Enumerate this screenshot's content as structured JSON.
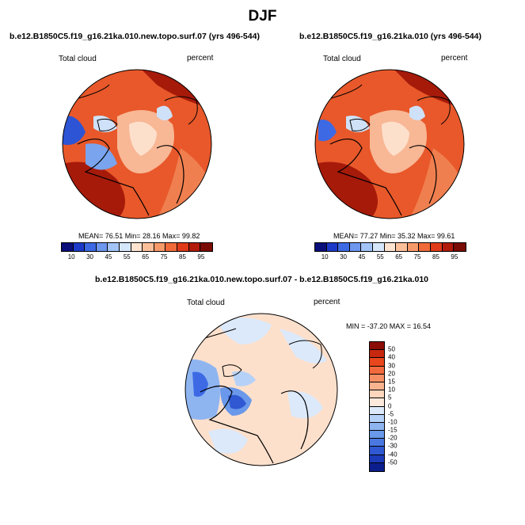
{
  "title": "DJF",
  "panels": [
    {
      "run_title": "b.e12.B1850C5.f19_g16.21ka.010.new.topo.surf.07 (yrs 496-544)",
      "left_label": "Total cloud",
      "right_label": "percent",
      "stats": "MEAN=  76.51  Min=  28.16  Max=  99.82"
    },
    {
      "run_title": "b.e12.B1850C5.f19_g16.21ka.010 (yrs 496-544)",
      "left_label": "Total cloud",
      "right_label": "percent",
      "stats": "MEAN=  77.27  Min=  35.32  Max=  99.61"
    }
  ],
  "colorbar_top": {
    "colors": [
      "#0a0f7a",
      "#1c3ac8",
      "#3d6ae4",
      "#6e97ee",
      "#a4c3f6",
      "#d7e7fb",
      "#fde3d0",
      "#fbbf9a",
      "#f79a6a",
      "#f06a3a",
      "#e03a18",
      "#b21a0a",
      "#7a0b05"
    ],
    "labels": [
      "10",
      "30",
      "45",
      "55",
      "65",
      "75",
      "85",
      "95"
    ]
  },
  "diff_panel": {
    "run_title": "b.e12.B1850C5.f19_g16.21ka.010.new.topo.surf.07 - b.e12.B1850C5.f19_g16.21ka.010",
    "left_label": "Total cloud",
    "right_label": "percent",
    "stats": "MIN =  -37.20  MAX =  16.54"
  },
  "colorbar_diff": {
    "colors": [
      "#8a0c05",
      "#c7280f",
      "#e8461c",
      "#f36a3e",
      "#f78f65",
      "#fab38f",
      "#fcd6bd",
      "#fde9dc",
      "#dbe9fb",
      "#b6d1f7",
      "#8fb5f1",
      "#6a98ea",
      "#4a78e0",
      "#2f58d2",
      "#1b3bb8",
      "#0c1e8c"
    ],
    "labels": [
      "50",
      "40",
      "30",
      "20",
      "15",
      "10",
      "5",
      "0",
      "-5",
      "-10",
      "-15",
      "-20",
      "-30",
      "-40",
      "-50"
    ]
  },
  "map_colors": {
    "deep_red": "#a61a0a",
    "red": "#d9481e",
    "orange": "#ec7a4c",
    "light_orange": "#f8b795",
    "peach": "#fde0cc",
    "light_blue": "#cfe1f8",
    "blue": "#7aa4ee",
    "dark_blue": "#2d54d4"
  }
}
